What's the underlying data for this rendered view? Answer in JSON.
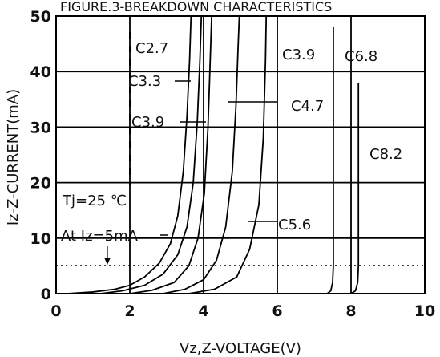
{
  "chart_data": {
    "type": "line",
    "title": "FIGURE.3-BREAKDOWN CHARACTERISTICS",
    "xlabel": "Vz,Z-VOLTAGE(V)",
    "ylabel": "Iz-Z-CURRENT(mA)",
    "xlim": [
      0,
      10
    ],
    "ylim": [
      0,
      50
    ],
    "xticks": [
      "0",
      "2",
      "4",
      "6",
      "8",
      "10"
    ],
    "yticks": [
      "0",
      "10",
      "20",
      "30",
      "40",
      "50"
    ],
    "grid": true,
    "reference_line": {
      "y": 5,
      "style": "dotted"
    },
    "annotations": {
      "temperature": "Tj=25 ℃",
      "test_current": "At Iz=5mA"
    },
    "series": [
      {
        "name": "C2.7",
        "x": [
          0.3,
          1.0,
          1.6,
          2.0,
          2.4,
          2.8,
          3.1,
          3.3,
          3.45,
          3.55,
          3.62,
          3.66
        ],
        "y": [
          0,
          0.3,
          0.8,
          1.5,
          3,
          5.5,
          9,
          14,
          22,
          32,
          42,
          50
        ]
      },
      {
        "name": "C3.3",
        "x": [
          1.2,
          1.8,
          2.4,
          2.9,
          3.3,
          3.55,
          3.72,
          3.83,
          3.9,
          3.94
        ],
        "y": [
          0,
          0.5,
          1.5,
          3.5,
          7,
          12,
          20,
          31,
          42,
          50
        ]
      },
      {
        "name": "C3.9",
        "x": [
          2.0,
          2.6,
          3.2,
          3.6,
          3.85,
          4.02,
          4.12,
          4.18,
          4.22
        ],
        "y": [
          0,
          0.6,
          2,
          5,
          10,
          18,
          30,
          42,
          50
        ]
      },
      {
        "name": "C4.7",
        "x": [
          2.9,
          3.5,
          4.0,
          4.35,
          4.6,
          4.78,
          4.88,
          4.94,
          4.97
        ],
        "y": [
          0,
          0.8,
          2.5,
          6,
          12,
          22,
          34,
          45,
          50
        ]
      },
      {
        "name": "C5.6",
        "x": [
          3.6,
          4.3,
          4.9,
          5.25,
          5.5,
          5.62,
          5.68,
          5.7
        ],
        "y": [
          0,
          0.8,
          3,
          8,
          16,
          28,
          42,
          50
        ]
      },
      {
        "name": "C6.8",
        "x": [
          7.35,
          7.45,
          7.5,
          7.52,
          7.52
        ],
        "y": [
          0,
          0.5,
          2,
          5,
          48
        ]
      },
      {
        "name": "C8.2",
        "x": [
          8.0,
          8.12,
          8.18,
          8.2,
          8.2
        ],
        "y": [
          0,
          0.5,
          2,
          5,
          38
        ]
      }
    ],
    "curve_labels": [
      {
        "series": "C2.7",
        "text": "C2.7"
      },
      {
        "series": "C3.3",
        "text": "C3.3"
      },
      {
        "series": "C3.9",
        "text": "C3.9"
      },
      {
        "series": "C3.9",
        "text": "C3.9"
      },
      {
        "series": "C4.7",
        "text": "C4.7"
      },
      {
        "series": "C5.6",
        "text": "C5.6"
      },
      {
        "series": "C6.8",
        "text": "C6.8"
      },
      {
        "series": "C8.2",
        "text": "C8.2"
      }
    ]
  }
}
